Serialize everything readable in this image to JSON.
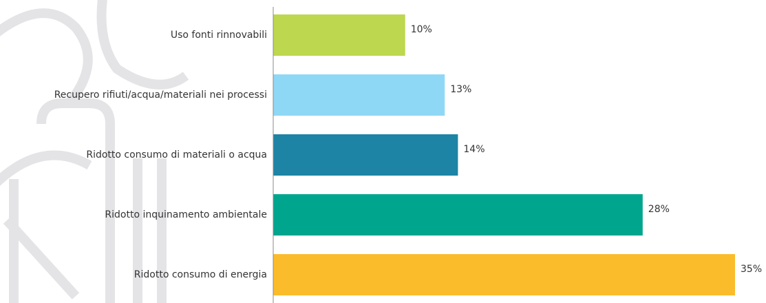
{
  "chart_data": {
    "type": "bar",
    "orientation": "horizontal",
    "categories": [
      "Uso fonti rinnovabili",
      "Recupero rifiuti/acqua/materiali nei processi",
      "Ridotto consumo di materiali o acqua",
      "Ridotto inquinamento ambientale",
      "Ridotto consumo di energia"
    ],
    "values": [
      10,
      13,
      14,
      28,
      35
    ],
    "value_labels": [
      "10%",
      "13%",
      "14%",
      "28%",
      "35%"
    ],
    "colors": [
      "#bdd74e",
      "#8fd8f5",
      "#1d84a6",
      "#00a58e",
      "#fbbc2c"
    ]
  }
}
